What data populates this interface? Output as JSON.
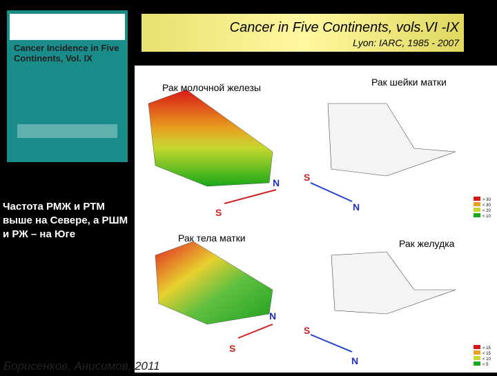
{
  "header": {
    "title": "Cancer in Five Continents, vols.VI -IX",
    "subtitle": "Lyon: IARC, 1985 - 2007"
  },
  "cover": {
    "title": "Cancer Incidence in Five Continents, Vol. IX"
  },
  "panels": [
    {
      "title": "Рак молочной железы",
      "north": "N",
      "south": "S"
    },
    {
      "title": "Рак шейки матки",
      "north": "N",
      "south": "S"
    },
    {
      "title": "Рак тела матки",
      "north": "N",
      "south": "S"
    },
    {
      "title": "Рак желудка",
      "north": "N",
      "south": "S"
    }
  ],
  "legends": [
    [
      "> 30",
      "< 30",
      "< 20",
      "< 10"
    ],
    [
      "> 15",
      "< 15",
      "< 10",
      "< 5"
    ]
  ],
  "note": "Частота РМЖ и РТМ выше на Севере, а РШМ и РЖ – на Юге",
  "author": "Борисенков, Анисимов, 2011"
}
